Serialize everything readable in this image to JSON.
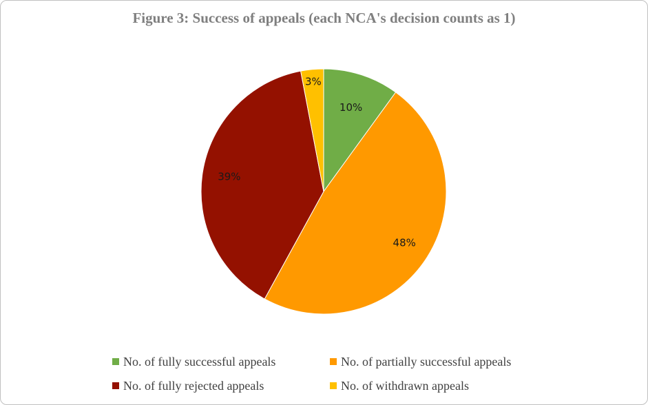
{
  "chart_data": {
    "type": "pie",
    "title": "Figure 3: Success of appeals (each NCA's decision counts as 1)",
    "categories": [
      "No. of fully successful appeals",
      "No. of partially successful appeals",
      "No. of fully rejected appeals",
      "No. of withdrawn appeals"
    ],
    "values": [
      10,
      48,
      39,
      3
    ],
    "data_labels": [
      "10%",
      "48%",
      "39%",
      "3%"
    ],
    "colors": [
      "#70ad47",
      "#ff9900",
      "#941100",
      "#ffc000"
    ],
    "legend_position": "bottom",
    "start_angle": "top (12 o'clock), clockwise"
  }
}
